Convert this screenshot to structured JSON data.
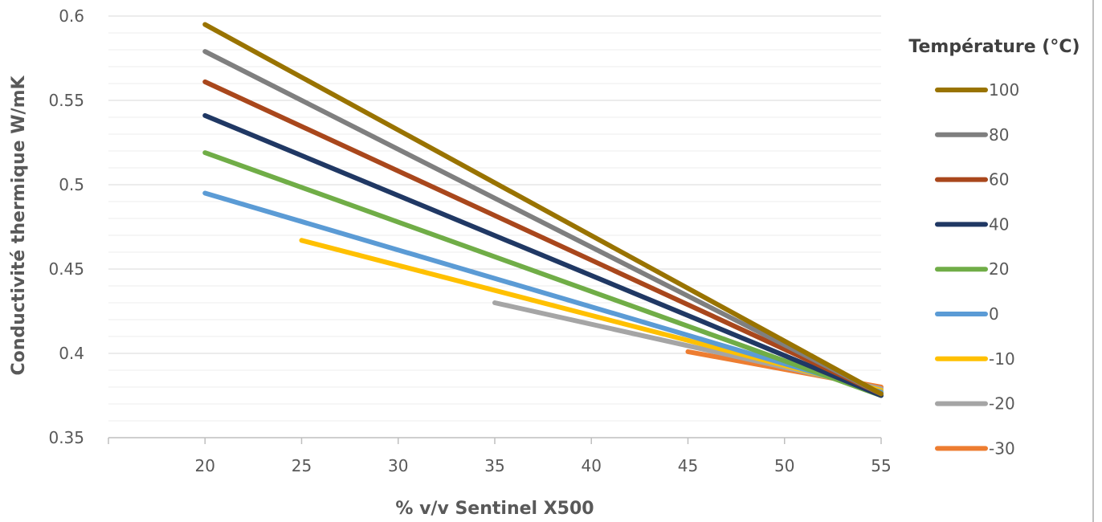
{
  "chart_data": {
    "type": "line",
    "title": "",
    "xlabel": "% v/v Sentinel X500",
    "ylabel": "Conductivité thermique W/mK",
    "xlim": [
      15,
      55
    ],
    "ylim": [
      0.35,
      0.6
    ],
    "x_ticks": [
      "20",
      "25",
      "30",
      "35",
      "40",
      "45",
      "50",
      "55"
    ],
    "y_ticks": [
      "0.35",
      "0.4",
      "0.45",
      "0.5",
      "0.55",
      "0.6"
    ],
    "grid": true,
    "legend_title": "Température (°C)",
    "legend_position": "right",
    "series": [
      {
        "name": "100",
        "color": "#997300",
        "x": [
          20,
          55
        ],
        "y": [
          0.595,
          0.376
        ]
      },
      {
        "name": "80",
        "color": "#7f7f7f",
        "x": [
          20,
          55
        ],
        "y": [
          0.579,
          0.376
        ]
      },
      {
        "name": "60",
        "color": "#a9471c",
        "x": [
          20,
          55
        ],
        "y": [
          0.561,
          0.376
        ]
      },
      {
        "name": "40",
        "color": "#203864",
        "x": [
          20,
          55
        ],
        "y": [
          0.541,
          0.375
        ]
      },
      {
        "name": "20",
        "color": "#70ad47",
        "x": [
          20,
          55
        ],
        "y": [
          0.519,
          0.375
        ]
      },
      {
        "name": "0",
        "color": "#5b9bd5",
        "x": [
          20,
          55
        ],
        "y": [
          0.495,
          0.377
        ]
      },
      {
        "name": "-10",
        "color": "#ffc000",
        "x": [
          25,
          55
        ],
        "y": [
          0.467,
          0.378
        ]
      },
      {
        "name": "-20",
        "color": "#a5a5a5",
        "x": [
          35,
          55
        ],
        "y": [
          0.43,
          0.379
        ]
      },
      {
        "name": "-30",
        "color": "#ed7d31",
        "x": [
          45,
          55
        ],
        "y": [
          0.401,
          0.38
        ]
      }
    ]
  }
}
